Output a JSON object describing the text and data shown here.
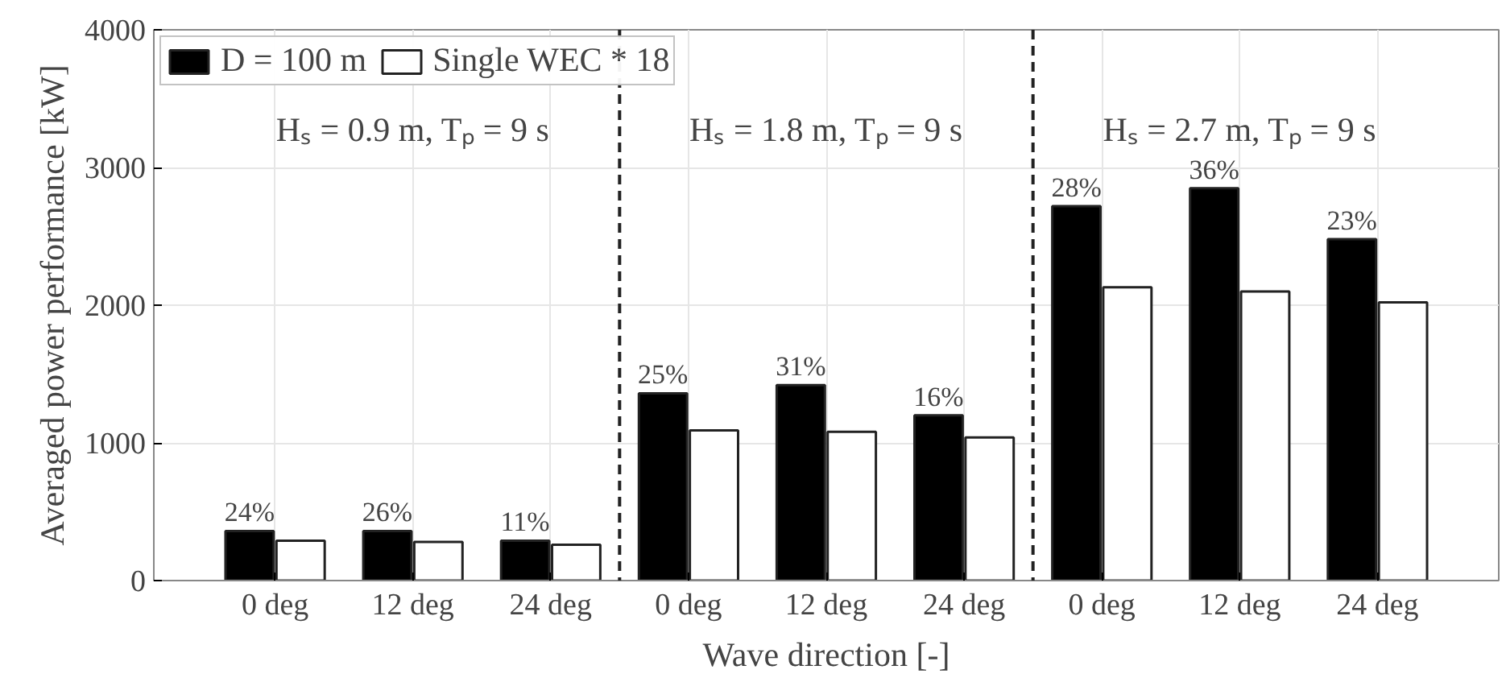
{
  "chart_data": {
    "type": "bar",
    "categories": [
      "0 deg",
      "12 deg",
      "24 deg",
      "0 deg",
      "12 deg",
      "24 deg",
      "0 deg",
      "12 deg",
      "24 deg"
    ],
    "series": [
      {
        "name": "D = 100 m",
        "color": "#000000",
        "values": [
          360,
          360,
          290,
          1360,
          1420,
          1200,
          2720,
          2850,
          2480
        ]
      },
      {
        "name": "Single WEC * 18",
        "color": "#ffffff",
        "values": [
          290,
          280,
          260,
          1090,
          1080,
          1040,
          2130,
          2100,
          2020
        ]
      }
    ],
    "xlabel": "Wave direction [-]",
    "ylabel": "Averaged power performance [kW]",
    "ylim": [
      0,
      4000
    ],
    "yticks": [
      0,
      1000,
      2000,
      3000,
      4000
    ],
    "annotations": [
      "Hₛ = 0.9 m, Tₚ = 9 s",
      "Hₛ = 1.8 m, Tₚ = 9 s",
      "Hₛ = 2.7 m, Tₚ = 9 s",
      "24%",
      "26%",
      "11%",
      "25%",
      "31%",
      "16%",
      "28%",
      "36%",
      "23%"
    ],
    "grid": true,
    "legend": "top left"
  }
}
